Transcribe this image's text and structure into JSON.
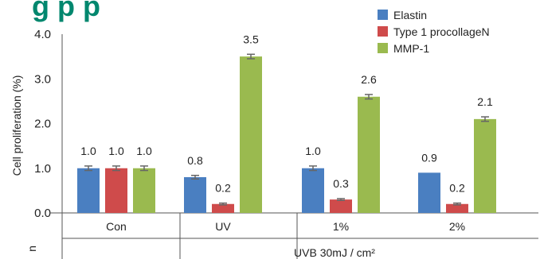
{
  "chart_data": {
    "type": "bar",
    "title_fragment": "g     p     p",
    "ylabel": "Cell proliferation (%)",
    "ylim": [
      0,
      4
    ],
    "yticks": [
      "0.0",
      "1.0",
      "2.0",
      "3.0",
      "4.0"
    ],
    "categories": [
      "Con",
      "UV",
      "1%",
      "2%"
    ],
    "group_label": "UVB 30mJ / cm²",
    "left_marker": "n",
    "legend_placement": "top-right",
    "series": [
      {
        "name": "Elastin",
        "color": "#4a7fc1",
        "values": [
          1.0,
          0.8,
          1.0,
          0.9
        ],
        "labels": [
          "1.0",
          "0.8",
          "1.0",
          "0.9"
        ],
        "error": [
          0.05,
          0.04,
          0.05,
          0.0
        ]
      },
      {
        "name": "Type 1 procollageN",
        "color": "#cf4b4b",
        "values": [
          1.0,
          0.2,
          0.3,
          0.2
        ],
        "labels": [
          "1.0",
          "0.2",
          "0.3",
          "0.2"
        ],
        "error": [
          0.05,
          0.02,
          0.02,
          0.02
        ]
      },
      {
        "name": "MMP-1",
        "color": "#9aba4f",
        "values": [
          1.0,
          3.5,
          2.6,
          2.1
        ],
        "labels": [
          "1.0",
          "3.5",
          "2.6",
          "2.1"
        ],
        "error": [
          0.05,
          0.05,
          0.05,
          0.05
        ]
      }
    ]
  }
}
